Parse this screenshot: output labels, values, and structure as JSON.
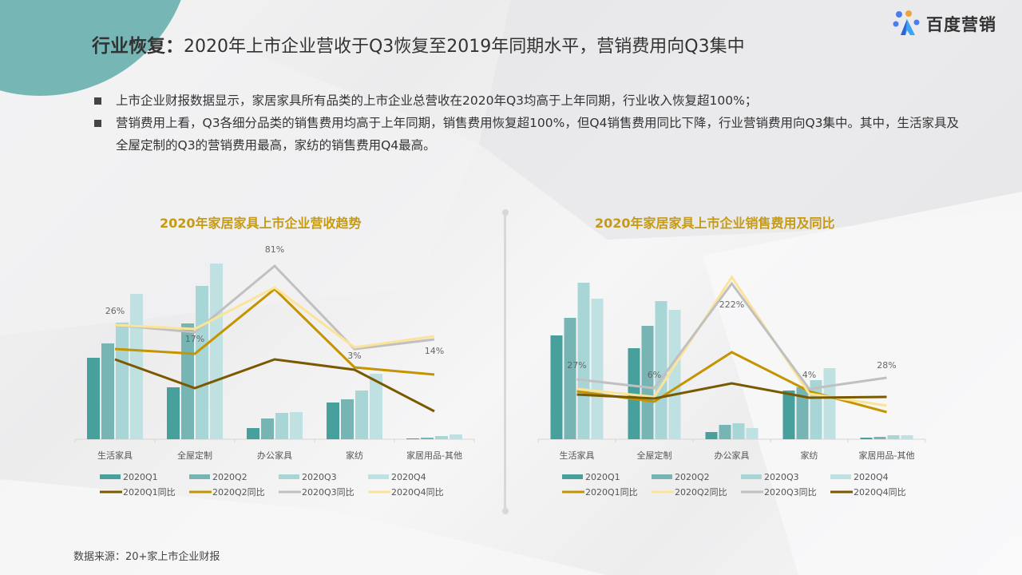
{
  "header": {
    "title_bold": "行业恢复：",
    "title_rest": "2020年上市企业营收于Q3恢复至2019年同期水平，营销费用向Q3集中",
    "logo_text": "百度营销",
    "logo_icon": "baidu-paw-icon"
  },
  "bullets": [
    "上市企业财报数据显示，家居家具所有品类的上市企业总营收在2020年Q3均高于上年同期，行业收入恢复超100%；",
    "营销费用上看，Q3各细分品类的销售费用均高于上年同期，销售费用恢复超100%，但Q4销售费用同比下降，行业营销费用向Q3集中。其中，生活家具及全屋定制的Q3的营销费用最高，家纺的销售费用Q4最高。"
  ],
  "source": "数据来源：20+家上市企业财报",
  "colors": {
    "bar_q1": "#47a09c",
    "bar_q2": "#76b5b3",
    "bar_q3": "#a8d6d6",
    "bar_q4": "#bfe1e1",
    "line_dark_brown": "#7a5a00",
    "line_gold": "#c49500",
    "line_gray": "#c0c0c0",
    "line_light_yellow": "#fbe49a",
    "title_gold": "#c69a12",
    "accent_teal": "#76b7b5"
  },
  "chart_data": [
    {
      "type": "bar+line",
      "title": "2020年家居家具上市企业营收趋势",
      "categories": [
        "生活家具",
        "全屋定制",
        "办公家具",
        "家纺",
        "家居用品-其他"
      ],
      "bar_series": [
        {
          "name": "2020Q1",
          "color": "#47a09c",
          "values": [
            102,
            65,
            14,
            46,
            1
          ]
        },
        {
          "name": "2020Q2",
          "color": "#76b5b3",
          "values": [
            120,
            145,
            26,
            50,
            2
          ]
        },
        {
          "name": "2020Q3",
          "color": "#a8d6d6",
          "values": [
            146,
            192,
            33,
            61,
            4
          ]
        },
        {
          "name": "2020Q4",
          "color": "#bfe1e1",
          "values": [
            182,
            220,
            34,
            82,
            6
          ]
        }
      ],
      "line_series": [
        {
          "name": "2020Q1同比",
          "color": "#7a5a00",
          "values": [
            100,
            64,
            100,
            87,
            35
          ]
        },
        {
          "name": "2020Q2同比",
          "color": "#c49500",
          "values": [
            113,
            107,
            188,
            90,
            81
          ]
        },
        {
          "name": "2020Q3同比",
          "color": "#c0c0c0",
          "values": [
            143,
            134,
            217,
            113,
            125
          ]
        },
        {
          "name": "2020Q4同比",
          "color": "#fbe49a",
          "values": [
            143,
            138,
            190,
            115,
            129
          ]
        }
      ],
      "data_labels": [
        {
          "series": "2020Q3同比",
          "category": "生活家具",
          "text": "26%"
        },
        {
          "series": "2020Q3同比",
          "category": "全屋定制",
          "text": "17%"
        },
        {
          "series": "2020Q3同比",
          "category": "办公家具",
          "text": "81%"
        },
        {
          "series": "2020Q3同比",
          "category": "家纺",
          "text": "3%"
        },
        {
          "series": "2020Q3同比",
          "category": "家居用品-其他",
          "text": "14%"
        }
      ],
      "ylim": [
        0,
        240
      ],
      "y_axis_visible": false,
      "grid": false,
      "legend_position": "bottom",
      "legend": [
        "2020Q1",
        "2020Q2",
        "2020Q3",
        "2020Q4",
        "2020Q1同比",
        "2020Q2同比",
        "2020Q3同比",
        "2020Q4同比"
      ]
    },
    {
      "type": "bar+line",
      "title": "2020年家居家具上市企业销售费用及同比",
      "categories": [
        "生活家具",
        "全屋定制",
        "办公家具",
        "家纺",
        "家居用品-其他"
      ],
      "bar_series": [
        {
          "name": "2020Q1",
          "color": "#47a09c",
          "values": [
            130,
            114,
            9,
            61,
            2
          ]
        },
        {
          "name": "2020Q2",
          "color": "#76b5b3",
          "values": [
            152,
            142,
            18,
            65,
            3
          ]
        },
        {
          "name": "2020Q3",
          "color": "#a8d6d6",
          "values": [
            196,
            173,
            20,
            74,
            5
          ]
        },
        {
          "name": "2020Q4",
          "color": "#bfe1e1",
          "values": [
            176,
            162,
            14,
            89,
            5
          ]
        }
      ],
      "line_series": [
        {
          "name": "2020Q1同比",
          "color": "#c49500",
          "values": [
            60,
            47,
            109,
            60,
            34
          ]
        },
        {
          "name": "2020Q2同比",
          "color": "#fbe49a",
          "values": [
            63,
            53,
            203,
            57,
            42
          ]
        },
        {
          "name": "2020Q3同比",
          "color": "#c0c0c0",
          "values": [
            75,
            64,
            195,
            63,
            77
          ]
        },
        {
          "name": "2020Q4同比",
          "color": "#7a5a00",
          "values": [
            56,
            51,
            70,
            52,
            53
          ]
        }
      ],
      "data_labels": [
        {
          "series": "2020Q3同比",
          "category": "生活家具",
          "text": "27%"
        },
        {
          "series": "2020Q3同比",
          "category": "全屋定制",
          "text": "6%"
        },
        {
          "series": "2020Q3同比",
          "category": "办公家具",
          "text": "222%"
        },
        {
          "series": "2020Q3同比",
          "category": "家纺",
          "text": "4%"
        },
        {
          "series": "2020Q3同比",
          "category": "家居用品-其他",
          "text": "28%"
        }
      ],
      "ylim": [
        0,
        240
      ],
      "y_axis_visible": false,
      "grid": false,
      "legend_position": "bottom",
      "legend": [
        "2020Q1",
        "2020Q2",
        "2020Q3",
        "2020Q4",
        "2020Q1同比",
        "2020Q2同比",
        "2020Q3同比",
        "2020Q4同比"
      ]
    }
  ]
}
